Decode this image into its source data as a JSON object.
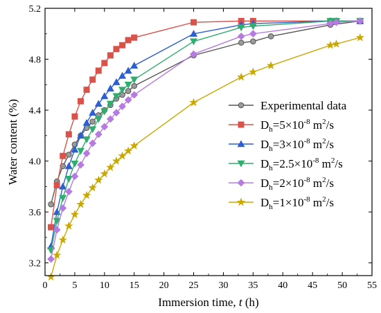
{
  "chart_data": {
    "type": "line",
    "xlabel": "Immersion time, ",
    "xlabel_var": "t",
    "xlabel_unit": " (h)",
    "ylabel": "Water content (%)",
    "xlim": [
      0,
      55
    ],
    "ylim": [
      3.1,
      5.2
    ],
    "xticks": [
      0,
      5,
      10,
      15,
      20,
      25,
      30,
      35,
      40,
      45,
      50,
      55
    ],
    "yticks": [
      3.2,
      3.6,
      4.0,
      4.4,
      4.8,
      5.2
    ],
    "ytick_labels": [
      "3.2",
      "3.6",
      "4.0",
      "4.4",
      "4.8",
      "5.2"
    ],
    "grid": false,
    "legend_position": "center-right",
    "series": [
      {
        "name": "Experimental data",
        "legend": {
          "main": "Experimental data"
        },
        "color": "#6e6e6e",
        "marker": "circle",
        "x": [
          1,
          2,
          3,
          4,
          5,
          6,
          7,
          8,
          9,
          10,
          11,
          12,
          13,
          14,
          15,
          25,
          33,
          35,
          38,
          48,
          53
        ],
        "y": [
          3.66,
          3.84,
          3.96,
          4.05,
          4.13,
          4.2,
          4.26,
          4.31,
          4.36,
          4.4,
          4.44,
          4.49,
          4.52,
          4.55,
          4.59,
          4.83,
          4.93,
          4.94,
          4.98,
          5.07,
          5.1
        ]
      },
      {
        "name": "Dh=5×10-8 m2/s",
        "legend": {
          "main": "D",
          "sub": "h",
          "mid": "=5×10",
          "sup": "-8",
          "tail": " m",
          "sup2": "2",
          "end": "/s"
        },
        "color": "#d9534a",
        "marker": "square",
        "x": [
          1,
          2,
          3,
          4,
          5,
          6,
          7,
          8,
          9,
          10,
          11,
          12,
          13,
          14,
          15,
          25,
          33,
          35,
          48,
          49,
          53
        ],
        "y": [
          3.48,
          3.81,
          4.04,
          4.21,
          4.35,
          4.47,
          4.56,
          4.64,
          4.71,
          4.77,
          4.83,
          4.88,
          4.91,
          4.95,
          4.97,
          5.09,
          5.1,
          5.1,
          5.1,
          5.1,
          5.1
        ]
      },
      {
        "name": "Dh=3×10-8 m2/s",
        "legend": {
          "main": "D",
          "sub": "h",
          "mid": "=3×10",
          "sup": "-8",
          "tail": " m",
          "sup2": "2",
          "end": "/s"
        },
        "color": "#2e5fd1",
        "marker": "triangle-up",
        "x": [
          1,
          2,
          3,
          4,
          5,
          6,
          7,
          8,
          9,
          10,
          11,
          12,
          13,
          14,
          15,
          25,
          33,
          35,
          48,
          49,
          53
        ],
        "y": [
          3.33,
          3.6,
          3.8,
          3.96,
          4.09,
          4.2,
          4.3,
          4.38,
          4.45,
          4.51,
          4.57,
          4.62,
          4.67,
          4.71,
          4.75,
          5.0,
          5.07,
          5.08,
          5.1,
          5.1,
          5.1
        ]
      },
      {
        "name": "Dh=2.5×10-8 m2/s",
        "legend": {
          "main": "D",
          "sub": "h",
          "mid": "=2.5×10",
          "sup": "-8",
          "tail": " m",
          "sup2": "2",
          "end": "/s"
        },
        "color": "#2fae6e",
        "marker": "triangle-down",
        "x": [
          1,
          2,
          3,
          4,
          5,
          6,
          7,
          8,
          9,
          10,
          11,
          12,
          13,
          14,
          15,
          25,
          33,
          35,
          48,
          49,
          53
        ],
        "y": [
          3.3,
          3.53,
          3.71,
          3.86,
          3.98,
          4.08,
          4.17,
          4.25,
          4.33,
          4.39,
          4.45,
          4.51,
          4.56,
          4.6,
          4.64,
          4.94,
          5.05,
          5.06,
          5.1,
          5.1,
          5.1
        ]
      },
      {
        "name": "Dh=2×10-8 m2/s",
        "legend": {
          "main": "D",
          "sub": "h",
          "mid": "=2×10",
          "sup": "-8",
          "tail": " m",
          "sup2": "2",
          "end": "/s"
        },
        "color": "#b57be0",
        "marker": "diamond",
        "x": [
          1,
          2,
          3,
          4,
          5,
          6,
          7,
          8,
          9,
          10,
          11,
          12,
          13,
          14,
          15,
          25,
          33,
          35,
          48,
          49,
          53
        ],
        "y": [
          3.23,
          3.46,
          3.63,
          3.76,
          3.88,
          3.97,
          4.06,
          4.14,
          4.21,
          4.27,
          4.33,
          4.38,
          4.43,
          4.48,
          4.52,
          4.84,
          4.98,
          5.0,
          5.08,
          5.09,
          5.1
        ]
      },
      {
        "name": "Dh=1×10-8 m2/s",
        "legend": {
          "main": "D",
          "sub": "h",
          "mid": "=1×10",
          "sup": "-8",
          "tail": " m",
          "sup2": "2",
          "end": "/s"
        },
        "color": "#c9a800",
        "marker": "star",
        "x": [
          1,
          2,
          3,
          4,
          5,
          6,
          7,
          8,
          9,
          10,
          11,
          12,
          13,
          14,
          15,
          25,
          33,
          35,
          38,
          48,
          49,
          53
        ],
        "y": [
          3.09,
          3.26,
          3.38,
          3.49,
          3.58,
          3.66,
          3.73,
          3.79,
          3.85,
          3.9,
          3.95,
          4.0,
          4.04,
          4.08,
          4.12,
          4.46,
          4.66,
          4.7,
          4.75,
          4.91,
          4.92,
          4.97
        ]
      }
    ]
  }
}
